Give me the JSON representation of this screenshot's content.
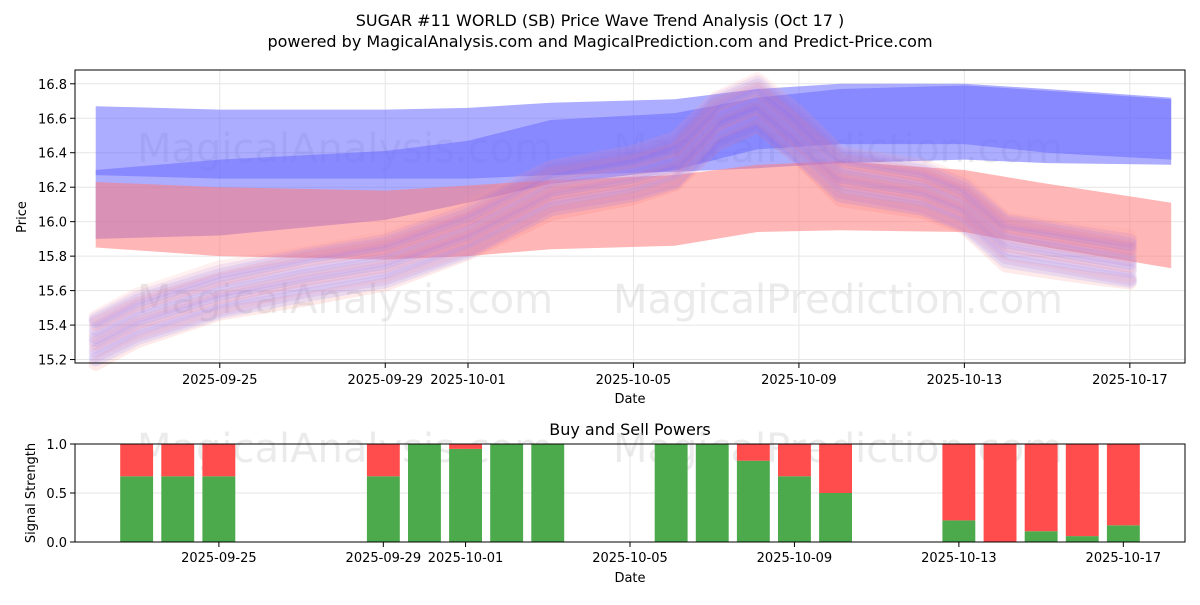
{
  "title": "SUGAR #11 WORLD (SB) Price Wave Trend Analysis (Oct 17 )",
  "subtitle": "powered by MagicalAnalysis.com and MagicalPrediction.com and Predict-Price.com",
  "watermarks": [
    "MagicalAnalysis.com",
    "MagicalPrediction.com"
  ],
  "colors": {
    "blue_band": "#6a6aff",
    "red_band": "#ff7a7a",
    "buy": "#4caa4c",
    "sell": "#ff4c4c",
    "grid": "#e6e6e6"
  },
  "chart_data": [
    {
      "type": "area",
      "title": "",
      "xlabel": "Date",
      "ylabel": "Price",
      "xlim": [
        "2025-09-21T12:00",
        "2025-10-18T08:00"
      ],
      "ylim": [
        15.18,
        16.88
      ],
      "x_ticks": [
        "2025-09-25",
        "2025-09-29",
        "2025-10-01",
        "2025-10-05",
        "2025-10-09",
        "2025-10-13",
        "2025-10-17"
      ],
      "y_ticks": [
        15.2,
        15.4,
        15.6,
        15.8,
        16.0,
        16.2,
        16.4,
        16.6,
        16.8
      ],
      "series": [
        {
          "name": "blue band upper",
          "color": "blue",
          "x": [
            "2025-09-22",
            "2025-09-25",
            "2025-09-29",
            "2025-10-01",
            "2025-10-03",
            "2025-10-06",
            "2025-10-08",
            "2025-10-10",
            "2025-10-13",
            "2025-10-15",
            "2025-10-18"
          ],
          "upper": [
            16.67,
            16.65,
            16.65,
            16.66,
            16.69,
            16.71,
            16.77,
            16.8,
            16.8,
            16.77,
            16.72
          ],
          "lower": [
            16.27,
            16.25,
            16.25,
            16.25,
            16.27,
            16.29,
            16.31,
            16.34,
            16.36,
            16.34,
            16.33
          ]
        },
        {
          "name": "blue band lower",
          "color": "blue",
          "x": [
            "2025-09-22",
            "2025-09-25",
            "2025-09-29",
            "2025-10-01",
            "2025-10-03",
            "2025-10-06",
            "2025-10-08",
            "2025-10-10",
            "2025-10-13",
            "2025-10-15",
            "2025-10-18"
          ],
          "upper": [
            16.3,
            16.36,
            16.41,
            16.47,
            16.59,
            16.63,
            16.72,
            16.77,
            16.79,
            16.76,
            16.71
          ],
          "lower": [
            15.9,
            15.92,
            16.01,
            16.11,
            16.22,
            16.3,
            16.42,
            16.45,
            16.45,
            16.4,
            16.36
          ]
        },
        {
          "name": "red band",
          "color": "red",
          "x": [
            "2025-09-22",
            "2025-09-25",
            "2025-09-29",
            "2025-10-01",
            "2025-10-03",
            "2025-10-06",
            "2025-10-08",
            "2025-10-10",
            "2025-10-13",
            "2025-10-15",
            "2025-10-18"
          ],
          "upper": [
            16.23,
            16.2,
            16.18,
            16.21,
            16.24,
            16.27,
            16.33,
            16.35,
            16.3,
            16.22,
            16.11
          ],
          "lower": [
            15.85,
            15.8,
            15.78,
            15.8,
            15.84,
            15.86,
            15.94,
            15.95,
            15.94,
            15.85,
            15.73
          ]
        },
        {
          "name": "wave lines",
          "color": "mixed",
          "x": [
            "2025-09-22",
            "2025-09-23",
            "2025-09-25",
            "2025-09-27",
            "2025-09-29",
            "2025-10-01",
            "2025-10-03",
            "2025-10-05",
            "2025-10-06",
            "2025-10-07",
            "2025-10-08",
            "2025-10-09",
            "2025-10-10",
            "2025-10-12",
            "2025-10-13",
            "2025-10-14",
            "2025-10-16",
            "2025-10-17"
          ],
          "y": [
            15.33,
            15.45,
            15.6,
            15.7,
            15.78,
            15.95,
            16.2,
            16.28,
            16.35,
            16.6,
            16.7,
            16.5,
            16.28,
            16.2,
            16.1,
            15.9,
            15.82,
            15.78
          ]
        }
      ]
    },
    {
      "type": "bar",
      "title": "Buy and Sell Powers",
      "xlabel": "Date",
      "ylabel": "Signal Strength",
      "ylim": [
        0,
        1
      ],
      "x_ticks": [
        "2025-09-25",
        "2025-09-29",
        "2025-10-01",
        "2025-10-05",
        "2025-10-09",
        "2025-10-13",
        "2025-10-17"
      ],
      "y_ticks": [
        "0.0",
        "0.5",
        "1.0"
      ],
      "categories": [
        "2025-09-23",
        "2025-09-24",
        "2025-09-25",
        "2025-09-29",
        "2025-09-30",
        "2025-10-01",
        "2025-10-02",
        "2025-10-03",
        "2025-10-06",
        "2025-10-07",
        "2025-10-08",
        "2025-10-09",
        "2025-10-10",
        "2025-10-13",
        "2025-10-14",
        "2025-10-15",
        "2025-10-16",
        "2025-10-17"
      ],
      "series": [
        {
          "name": "Buy",
          "values": [
            0.67,
            0.67,
            0.67,
            0.67,
            1.0,
            0.95,
            1.0,
            1.0,
            1.0,
            1.0,
            0.83,
            0.67,
            0.5,
            0.22,
            0.0,
            0.11,
            0.06,
            0.17
          ]
        },
        {
          "name": "Sell",
          "values": [
            0.33,
            0.33,
            0.33,
            0.33,
            0.0,
            0.05,
            0.0,
            0.0,
            0.0,
            0.0,
            0.17,
            0.33,
            0.5,
            0.78,
            1.0,
            0.89,
            0.94,
            0.83
          ]
        }
      ]
    }
  ]
}
